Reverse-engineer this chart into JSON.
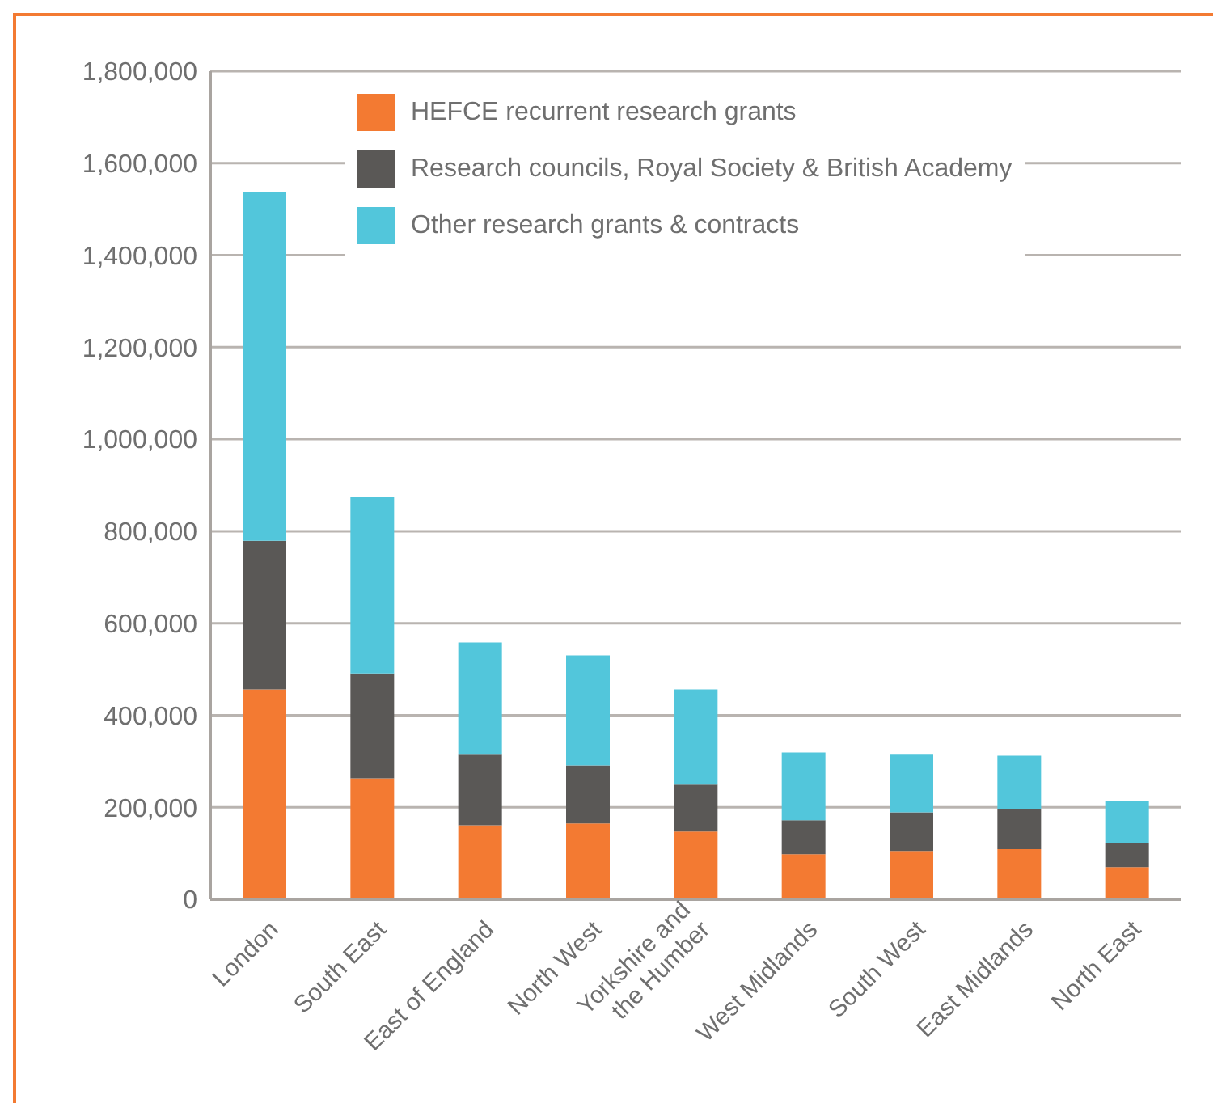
{
  "chart_data": {
    "type": "bar",
    "stacked": true,
    "categories": [
      "London",
      "South East",
      "East of England",
      "North West",
      "Yorkshire and the Humber",
      "West Midlands",
      "South West",
      "East Midlands",
      "North East"
    ],
    "series": [
      {
        "name": "HEFCE recurrent research grants",
        "color": "#f37a32",
        "values": [
          456000,
          263000,
          161000,
          165000,
          147000,
          98000,
          105000,
          109000,
          70000
        ]
      },
      {
        "name": "Research councils, Royal Society & British Academy",
        "color": "#5a5856",
        "values": [
          323000,
          228000,
          155000,
          126000,
          102000,
          74000,
          84000,
          88000,
          53000
        ]
      },
      {
        "name": "Other research grants & contracts",
        "color": "#52c6db",
        "values": [
          758000,
          383000,
          242000,
          239000,
          207000,
          147000,
          127000,
          115000,
          91000
        ]
      }
    ],
    "ylim": [
      0,
      1800000
    ],
    "yticks": [
      {
        "value": 0,
        "label": "0"
      },
      {
        "value": 200000,
        "label": "200,000"
      },
      {
        "value": 400000,
        "label": "400,000"
      },
      {
        "value": 600000,
        "label": "600,000"
      },
      {
        "value": 800000,
        "label": "800,000"
      },
      {
        "value": 1000000,
        "label": "1,000,000"
      },
      {
        "value": 1200000,
        "label": "1,200,000"
      },
      {
        "value": 1400000,
        "label": "1,400,000"
      },
      {
        "value": 1600000,
        "label": "1,600,000"
      },
      {
        "value": 1800000,
        "label": "1,800,000"
      }
    ],
    "grid": "y",
    "legend": "top"
  }
}
